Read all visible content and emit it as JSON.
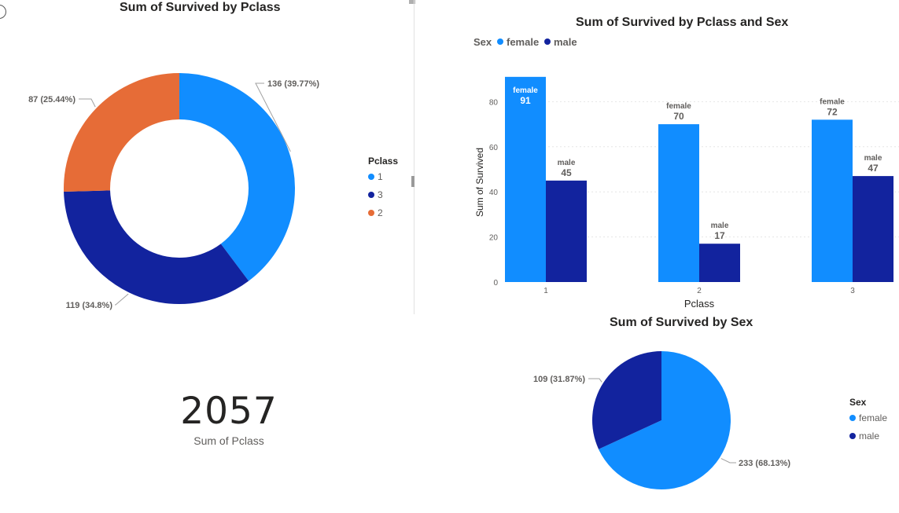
{
  "colors": {
    "female": "#118DFF",
    "male": "#12239E",
    "orange": "#E66C37",
    "grid": "#e6e6e6",
    "label": "#605e5c",
    "dark": "#252423"
  },
  "kpi": {
    "value": "2057",
    "label": "Sum of Pclass"
  },
  "chart_data": [
    {
      "type": "pie",
      "variant": "donut",
      "title": "Sum of Survived by Pclass",
      "legend_title": "Pclass",
      "legend_position": "right",
      "categories": [
        "1",
        "3",
        "2"
      ],
      "values": [
        136,
        119,
        87
      ],
      "labels": [
        "136 (39.77%)",
        "119 (34.8%)",
        "87 (25.44%)"
      ],
      "colors": [
        "#118DFF",
        "#12239E",
        "#E66C37"
      ]
    },
    {
      "type": "bar",
      "title": "Sum of Survived by Pclass and Sex",
      "xlabel": "Pclass",
      "ylabel": "Sum of Survived",
      "ylim": [
        0,
        100
      ],
      "yticks": [
        "0",
        "20",
        "40",
        "60",
        "80"
      ],
      "categories": [
        "1",
        "2",
        "3"
      ],
      "legend_title": "Sex",
      "legend_position": "top-left",
      "series": [
        {
          "name": "female",
          "values": [
            91,
            70,
            72
          ],
          "color": "#118DFF"
        },
        {
          "name": "male",
          "values": [
            45,
            17,
            47
          ],
          "color": "#12239E"
        }
      ],
      "data_labels": {
        "female": [
          [
            "female",
            "91"
          ],
          [
            "female",
            "70"
          ],
          [
            "female",
            "72"
          ]
        ],
        "male": [
          [
            "male",
            "45"
          ],
          [
            "male",
            "17"
          ],
          [
            "male",
            "47"
          ]
        ]
      }
    },
    {
      "type": "pie",
      "title": "Sum of Survived by Sex",
      "legend_title": "Sex",
      "legend_position": "right",
      "categories": [
        "female",
        "male"
      ],
      "values": [
        233,
        109
      ],
      "labels": [
        "233 (68.13%)",
        "109 (31.87%)"
      ],
      "colors": [
        "#118DFF",
        "#12239E"
      ]
    }
  ]
}
